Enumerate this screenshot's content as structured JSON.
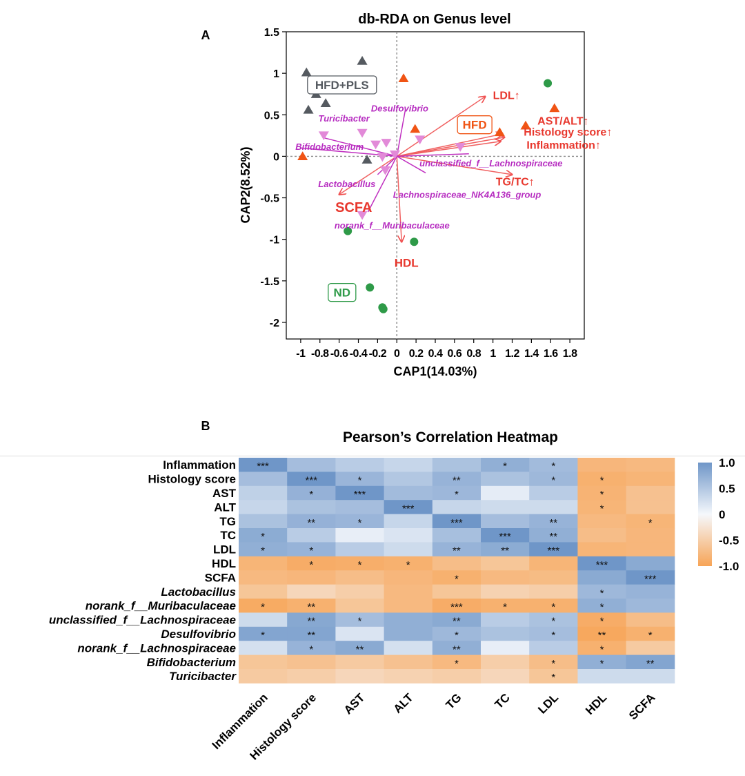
{
  "chart_data": [
    {
      "type": "scatter",
      "panel_label": "A",
      "title": "db-RDA on Genus level",
      "xlabel": "CAP1(14.03%)",
      "ylabel": "CAP2(8.52%)",
      "xlim": [
        -1.15,
        1.95
      ],
      "ylim": [
        -2.2,
        1.5
      ],
      "grid": false,
      "x_ticks": [
        -1,
        -0.8,
        -0.6,
        -0.4,
        -0.2,
        0,
        0.2,
        0.4,
        0.6,
        0.8,
        1,
        1.2,
        1.4,
        1.6,
        1.8
      ],
      "x_tick_labels": [
        "-1",
        "-0.8",
        "-0.6",
        "-0.4",
        "-0.2",
        "0",
        "0.2",
        "0.4",
        "0.6",
        "0.8",
        "1",
        "1.2",
        "1.4",
        "1.6",
        "1.8"
      ],
      "y_ticks": [
        -2,
        -1.5,
        -1,
        -0.5,
        0,
        0.5,
        1,
        1.5
      ],
      "y_tick_labels": [
        "-2",
        "-1.5",
        "-1",
        "-0.5",
        "0",
        "0.5",
        "1",
        "1.5"
      ],
      "groups": [
        {
          "name": "HFD+PLS",
          "marker": "triangle",
          "color": "#555a60",
          "points": [
            [
              -0.94,
              1.01
            ],
            [
              -0.84,
              0.75
            ],
            [
              -0.74,
              0.64
            ],
            [
              -0.92,
              0.56
            ],
            [
              -0.36,
              1.15
            ],
            [
              -0.31,
              -0.04
            ]
          ],
          "label_pos": [
            -0.57,
            0.86
          ]
        },
        {
          "name": "HFD",
          "marker": "triangle",
          "color": "#f05414",
          "points": [
            [
              0.07,
              0.94
            ],
            [
              0.19,
              0.33
            ],
            [
              1.07,
              0.29
            ],
            [
              1.34,
              0.37
            ],
            [
              1.64,
              0.58
            ],
            [
              -0.98,
              0.0
            ]
          ],
          "label_pos": [
            0.81,
            0.38
          ]
        },
        {
          "name": "ND",
          "marker": "circle",
          "color": "#2e9a48",
          "points": [
            [
              1.57,
              0.88
            ],
            [
              -0.51,
              -0.9
            ],
            [
              0.18,
              -1.03
            ],
            [
              -0.28,
              -1.58
            ],
            [
              -0.15,
              -1.82
            ],
            [
              -0.14,
              -1.84
            ]
          ],
          "label_pos": [
            -0.57,
            -1.64
          ]
        }
      ],
      "genus_points": {
        "marker": "triangle-down",
        "color": "#e28ad8",
        "points": [
          [
            -0.76,
            0.25
          ],
          [
            -0.36,
            0.28
          ],
          [
            -0.22,
            0.14
          ],
          [
            -0.11,
            0.16
          ],
          [
            -0.15,
            -0.01
          ],
          [
            -0.02,
            0.02
          ],
          [
            0.24,
            0.2
          ],
          [
            0.66,
            0.11
          ],
          [
            -0.12,
            -0.17
          ],
          [
            -0.36,
            -0.71
          ]
        ]
      },
      "response_vectors": [
        {
          "name": "LDL↑",
          "end": [
            0.92,
            0.72
          ],
          "label_pos": [
            1.0,
            0.74
          ]
        },
        {
          "name": "AST/ALT↑",
          "end": [
            1.12,
            0.23
          ],
          "label_pos": [
            1.73,
            0.43
          ]
        },
        {
          "name": "Histology score↑",
          "end": [
            1.1,
            0.27
          ],
          "label_pos": [
            1.78,
            0.3
          ]
        },
        {
          "name": "Inflammation↑",
          "end": [
            1.08,
            0.18
          ],
          "label_pos": [
            1.35,
            0.14
          ]
        },
        {
          "name": "TG/TC↑",
          "end": [
            1.2,
            -0.22
          ],
          "label_pos": [
            1.03,
            -0.3
          ]
        },
        {
          "name": "SCFA",
          "end": [
            -0.6,
            -0.46
          ],
          "label_pos": [
            -0.64,
            -0.62
          ]
        },
        {
          "name": "HDL",
          "end": [
            0.05,
            -1.03
          ],
          "label_pos": [
            0.1,
            -1.28
          ]
        }
      ],
      "genus_vectors": [
        {
          "name": "Desulfovibrio",
          "end": [
            0.09,
            0.57
          ],
          "label_pos": [
            0.03,
            0.58
          ]
        },
        {
          "name": "Turicibacter",
          "end": [
            -0.75,
            0.22
          ],
          "label_pos": [
            -0.55,
            0.46
          ]
        },
        {
          "name": "Bifidobacterium",
          "end": [
            -1.0,
            0.1
          ],
          "label_pos": [
            -0.7,
            0.12
          ]
        },
        {
          "name": "Lactobacillus",
          "end": [
            -0.2,
            -0.22
          ],
          "label_pos": [
            -0.52,
            -0.33
          ]
        },
        {
          "name": "norank_f__Muribaculaceae",
          "end": [
            -0.3,
            -0.67
          ],
          "label_pos": [
            -0.05,
            -0.83
          ]
        },
        {
          "name": "unclassified_f__Lachnospiraceae",
          "end": [
            0.75,
            0.03
          ],
          "label_pos": [
            0.98,
            -0.08
          ]
        },
        {
          "name": "Lachnospiraceae_NK4A136_group",
          "end": [
            0.3,
            -0.2
          ],
          "label_pos": [
            0.73,
            -0.46
          ]
        }
      ]
    },
    {
      "type": "heatmap",
      "panel_label": "B",
      "title": "Pearson’s Correlation Heatmap",
      "columns": [
        "Inflammation",
        "Histology score",
        "AST",
        "ALT",
        "TG",
        "TC",
        "LDL",
        "HDL",
        "SCFA"
      ],
      "rows": [
        "Inflammation",
        "Histology score",
        "AST",
        "ALT",
        "TG",
        "TC",
        "LDL",
        "HDL",
        "SCFA",
        "Lactobacillus",
        "norank_f__Muribaculaceae",
        "unclassified_f__Lachnospiraceae",
        "Desulfovibrio",
        "norank_f__Lachnospiraceae",
        "Bifidobacterium",
        "Turicibacter"
      ],
      "italic_rows": [
        "Lactobacillus",
        "norank_f__Muribaculaceae",
        "unclassified_f__Lachnospiraceae",
        "Desulfovibrio",
        "norank_f__Lachnospiraceae",
        "Bifidobacterium",
        "Turicibacter"
      ],
      "values": [
        [
          1.0,
          0.6,
          0.45,
          0.35,
          0.55,
          0.75,
          0.62,
          -0.78,
          -0.75
        ],
        [
          0.6,
          1.0,
          0.68,
          0.5,
          0.7,
          0.55,
          0.65,
          -0.85,
          -0.8
        ],
        [
          0.4,
          0.72,
          1.0,
          0.62,
          0.66,
          0.12,
          0.45,
          -0.82,
          -0.65
        ],
        [
          0.35,
          0.55,
          0.6,
          1.0,
          0.35,
          0.3,
          0.3,
          -0.8,
          -0.65
        ],
        [
          0.55,
          0.72,
          0.68,
          0.35,
          1.0,
          0.6,
          0.7,
          -0.75,
          -0.8
        ],
        [
          0.78,
          0.45,
          0.1,
          0.2,
          0.58,
          1.0,
          0.75,
          -0.7,
          -0.78
        ],
        [
          0.75,
          0.7,
          0.45,
          0.3,
          0.7,
          0.78,
          1.0,
          -0.8,
          -0.78
        ],
        [
          -0.8,
          -0.9,
          -0.88,
          -0.85,
          -0.7,
          -0.6,
          -0.8,
          1.0,
          0.8
        ],
        [
          -0.75,
          -0.78,
          -0.7,
          -0.78,
          -0.85,
          -0.75,
          -0.72,
          0.8,
          1.0
        ],
        [
          -0.6,
          -0.4,
          -0.5,
          -0.75,
          -0.6,
          -0.45,
          -0.5,
          0.65,
          0.7
        ],
        [
          -0.92,
          -0.85,
          -0.6,
          -0.75,
          -0.9,
          -0.85,
          -0.85,
          0.75,
          0.65
        ],
        [
          0.3,
          0.82,
          0.6,
          0.75,
          0.8,
          0.45,
          0.55,
          -0.9,
          -0.7
        ],
        [
          0.85,
          0.85,
          0.2,
          0.75,
          0.65,
          0.55,
          0.6,
          -0.95,
          -0.85
        ],
        [
          0.25,
          0.7,
          0.8,
          0.25,
          0.75,
          0.1,
          0.45,
          -0.85,
          -0.55
        ],
        [
          -0.6,
          -0.65,
          -0.55,
          -0.65,
          -0.75,
          -0.5,
          -0.7,
          0.75,
          0.85
        ],
        [
          -0.55,
          -0.5,
          -0.4,
          -0.45,
          -0.5,
          -0.4,
          -0.6,
          0.3,
          0.3
        ]
      ],
      "significance": [
        [
          "***",
          "",
          "",
          "",
          "",
          "*",
          "*",
          "",
          ""
        ],
        [
          "",
          "***",
          "*",
          "",
          "**",
          "",
          "*",
          "*",
          ""
        ],
        [
          "",
          "*",
          "***",
          "",
          "*",
          "",
          "",
          "*",
          ""
        ],
        [
          "",
          "",
          "",
          "***",
          "",
          "",
          "",
          "*",
          ""
        ],
        [
          "",
          "**",
          "*",
          "",
          "***",
          "",
          "**",
          "",
          "*"
        ],
        [
          "*",
          "",
          "",
          "",
          "",
          "***",
          "**",
          "",
          ""
        ],
        [
          "*",
          "*",
          "",
          "",
          "**",
          "**",
          "***",
          "",
          ""
        ],
        [
          "",
          "*",
          "*",
          "*",
          "",
          "",
          "",
          "***",
          ""
        ],
        [
          "",
          "",
          "",
          "",
          "*",
          "",
          "",
          "",
          "***"
        ],
        [
          "",
          "",
          "",
          "",
          "",
          "",
          "",
          "*",
          ""
        ],
        [
          "*",
          "**",
          "",
          "",
          "***",
          "*",
          "*",
          "*",
          ""
        ],
        [
          "",
          "**",
          "*",
          "",
          "**",
          "",
          "*",
          "*",
          ""
        ],
        [
          "*",
          "**",
          "",
          "",
          "*",
          "",
          "*",
          "**",
          "*"
        ],
        [
          "",
          "*",
          "**",
          "",
          "**",
          "",
          "",
          "*",
          ""
        ],
        [
          "",
          "",
          "",
          "",
          "*",
          "",
          "*",
          "*",
          "**"
        ],
        [
          "",
          "",
          "",
          "",
          "",
          "",
          "*",
          "",
          ""
        ]
      ],
      "color_scale": {
        "min": -1.0,
        "max": 1.0,
        "low_color": "#f7a456",
        "mid_color": "#f5f8fc",
        "high_color": "#6f96c8"
      },
      "legend_ticks": [
        1.0,
        0.5,
        0,
        -0.5,
        -1.0
      ],
      "legend_tick_labels": [
        "1.0",
        "0.5",
        "0",
        "-0.5",
        "-1.0"
      ],
      "legend_placement": "right"
    }
  ]
}
